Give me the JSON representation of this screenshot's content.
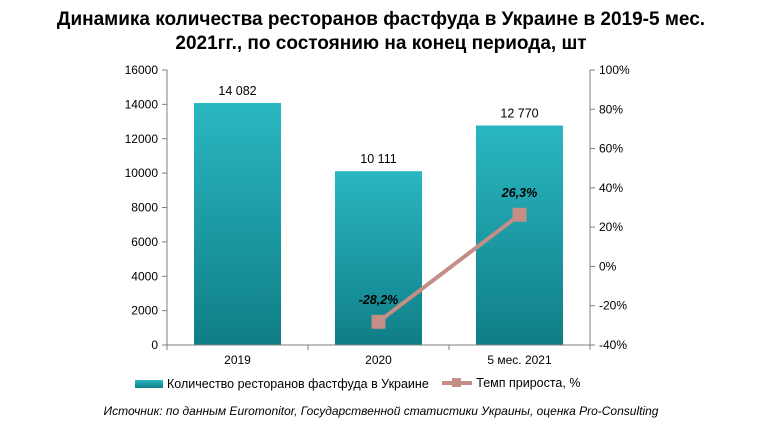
{
  "title_line1": "Динамика количества ресторанов фастфуда в Украине в 2019-5 мес.",
  "title_line2": "2021гг., по состоянию на конец периода, шт",
  "source": "Источник: по данным Euromonitor, Государственной статистики Украины, оценка Pro-Consulting",
  "colors": {
    "bar_top": "#2ab7c2",
    "bar_bottom": "#0f7e86",
    "line": "#c48e86",
    "axis": "#7f7f7f"
  },
  "chart_data": {
    "type": "bar+line",
    "categories": [
      "2019",
      "2020",
      "5 мес. 2021"
    ],
    "series": [
      {
        "name": "Количество ресторанов фастфуда в Украине",
        "type": "bar",
        "axis": "left",
        "values": [
          14082,
          10111,
          12770
        ],
        "labels": [
          "14 082",
          "10 111",
          "12 770"
        ]
      },
      {
        "name": "Темп прироста, %",
        "type": "line",
        "axis": "right",
        "values": [
          null,
          -28.2,
          26.3
        ],
        "labels": [
          null,
          "-28,2%",
          "26,3%"
        ]
      }
    ],
    "y_left": {
      "min": 0,
      "max": 16000,
      "ticks": [
        "0",
        "2000",
        "4000",
        "6000",
        "8000",
        "10000",
        "12000",
        "14000",
        "16000"
      ]
    },
    "y_right": {
      "min": -40,
      "max": 100,
      "ticks": [
        "-40%",
        "-20%",
        "0%",
        "20%",
        "40%",
        "60%",
        "80%",
        "100%"
      ]
    },
    "grid": false,
    "legend_position": "bottom"
  }
}
